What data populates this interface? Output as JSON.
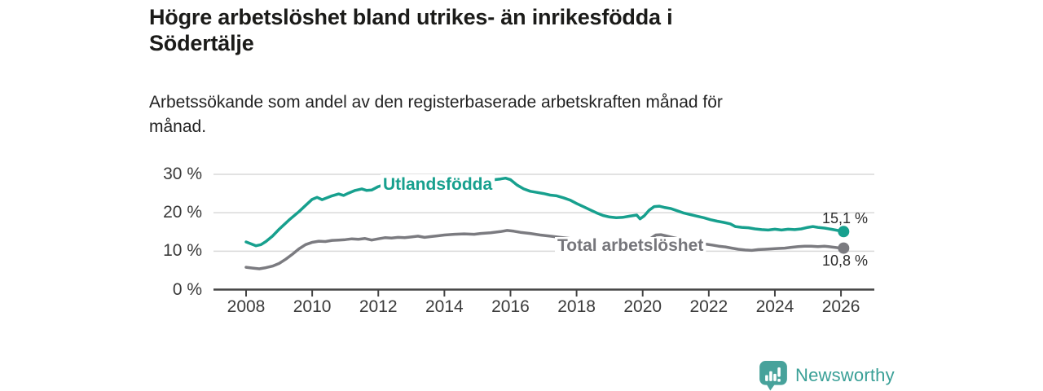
{
  "header": {
    "title_line1": "Högre arbetslöshet bland utrikes- än inrikesfödda i",
    "title_line2": "Södertälje",
    "subtitle_line1": "Arbetssökande som andel av den registerbaserade arbetskraften månad för",
    "subtitle_line2": "månad."
  },
  "chart_data": {
    "type": "line",
    "title": "Högre arbetslöshet bland utrikes- än inrikesfödda i Södertälje",
    "subtitle": "Arbetssökande som andel av den registerbaserade arbetskraften månad för månad.",
    "x_axis": {
      "range": [
        2007.7,
        2027.1
      ],
      "ticks": [
        {
          "value": 2008,
          "label": "2008"
        },
        {
          "value": 2010,
          "label": "2010"
        },
        {
          "value": 2012,
          "label": "2012"
        },
        {
          "value": 2014,
          "label": "2014"
        },
        {
          "value": 2016,
          "label": "2016"
        },
        {
          "value": 2018,
          "label": "2018"
        },
        {
          "value": 2020,
          "label": "2020"
        },
        {
          "value": 2022,
          "label": "2022"
        },
        {
          "value": 2024,
          "label": "2024"
        },
        {
          "value": 2026,
          "label": "2026"
        }
      ]
    },
    "y_axis": {
      "range": [
        0,
        30
      ],
      "unit": "%",
      "grid": true,
      "ticks": [
        {
          "value": 0,
          "label": "0 %"
        },
        {
          "value": 10,
          "label": "10 %"
        },
        {
          "value": 20,
          "label": "20 %"
        },
        {
          "value": 30,
          "label": "30 %"
        }
      ]
    },
    "legend_position": "inline-labels",
    "series": [
      {
        "name": "Utlandsfödda",
        "color": "#17a08e",
        "end_label": "15,1 %",
        "end_value": 15.1,
        "points": [
          [
            2008.0,
            12.4
          ],
          [
            2008.15,
            11.9
          ],
          [
            2008.3,
            11.4
          ],
          [
            2008.45,
            11.7
          ],
          [
            2008.6,
            12.5
          ],
          [
            2008.8,
            13.9
          ],
          [
            2009.0,
            15.7
          ],
          [
            2009.15,
            16.9
          ],
          [
            2009.3,
            18.1
          ],
          [
            2009.45,
            19.2
          ],
          [
            2009.6,
            20.3
          ],
          [
            2009.8,
            21.9
          ],
          [
            2010.0,
            23.5
          ],
          [
            2010.15,
            24.0
          ],
          [
            2010.3,
            23.4
          ],
          [
            2010.45,
            23.9
          ],
          [
            2010.6,
            24.4
          ],
          [
            2010.8,
            24.9
          ],
          [
            2010.95,
            24.5
          ],
          [
            2011.1,
            25.1
          ],
          [
            2011.3,
            25.8
          ],
          [
            2011.5,
            26.2
          ],
          [
            2011.65,
            25.8
          ],
          [
            2011.8,
            25.9
          ],
          [
            2012.0,
            26.8
          ],
          [
            2012.2,
            27.4
          ],
          [
            2012.35,
            27.1
          ],
          [
            2012.5,
            27.0
          ],
          [
            2012.7,
            27.2
          ],
          [
            2012.9,
            27.3
          ],
          [
            2013.1,
            27.5
          ],
          [
            2013.4,
            27.4
          ],
          [
            2013.7,
            27.7
          ],
          [
            2014.0,
            27.9
          ],
          [
            2014.3,
            28.0
          ],
          [
            2014.6,
            28.2
          ],
          [
            2014.9,
            28.3
          ],
          [
            2015.2,
            28.4
          ],
          [
            2015.5,
            28.6
          ],
          [
            2015.7,
            28.8
          ],
          [
            2015.85,
            29.0
          ],
          [
            2016.0,
            28.6
          ],
          [
            2016.2,
            27.2
          ],
          [
            2016.4,
            26.2
          ],
          [
            2016.6,
            25.6
          ],
          [
            2016.8,
            25.3
          ],
          [
            2017.0,
            25.0
          ],
          [
            2017.2,
            24.6
          ],
          [
            2017.4,
            24.4
          ],
          [
            2017.6,
            23.9
          ],
          [
            2017.8,
            23.3
          ],
          [
            2018.0,
            22.4
          ],
          [
            2018.2,
            21.6
          ],
          [
            2018.4,
            20.8
          ],
          [
            2018.6,
            20.0
          ],
          [
            2018.8,
            19.3
          ],
          [
            2019.0,
            18.9
          ],
          [
            2019.2,
            18.7
          ],
          [
            2019.4,
            18.8
          ],
          [
            2019.6,
            19.1
          ],
          [
            2019.82,
            19.4
          ],
          [
            2019.92,
            18.4
          ],
          [
            2020.05,
            19.2
          ],
          [
            2020.2,
            20.7
          ],
          [
            2020.35,
            21.6
          ],
          [
            2020.5,
            21.7
          ],
          [
            2020.65,
            21.4
          ],
          [
            2020.85,
            21.1
          ],
          [
            2021.05,
            20.5
          ],
          [
            2021.25,
            19.9
          ],
          [
            2021.45,
            19.5
          ],
          [
            2021.65,
            19.1
          ],
          [
            2021.85,
            18.7
          ],
          [
            2022.05,
            18.2
          ],
          [
            2022.25,
            17.8
          ],
          [
            2022.45,
            17.5
          ],
          [
            2022.65,
            17.1
          ],
          [
            2022.8,
            16.4
          ],
          [
            2023.0,
            16.2
          ],
          [
            2023.2,
            16.1
          ],
          [
            2023.4,
            15.8
          ],
          [
            2023.6,
            15.6
          ],
          [
            2023.8,
            15.5
          ],
          [
            2024.0,
            15.7
          ],
          [
            2024.2,
            15.5
          ],
          [
            2024.4,
            15.7
          ],
          [
            2024.6,
            15.6
          ],
          [
            2024.8,
            15.8
          ],
          [
            2025.0,
            16.2
          ],
          [
            2025.15,
            16.4
          ],
          [
            2025.3,
            16.2
          ],
          [
            2025.5,
            16.0
          ],
          [
            2025.7,
            15.7
          ],
          [
            2025.9,
            15.4
          ],
          [
            2026.08,
            15.1
          ]
        ]
      },
      {
        "name": "Total arbetslöshet",
        "color": "#7b7b80",
        "end_label": "10,8 %",
        "end_value": 10.8,
        "points": [
          [
            2008.0,
            5.8
          ],
          [
            2008.2,
            5.6
          ],
          [
            2008.4,
            5.4
          ],
          [
            2008.6,
            5.7
          ],
          [
            2008.8,
            6.1
          ],
          [
            2009.0,
            6.8
          ],
          [
            2009.2,
            7.9
          ],
          [
            2009.4,
            9.2
          ],
          [
            2009.6,
            10.6
          ],
          [
            2009.8,
            11.7
          ],
          [
            2010.0,
            12.3
          ],
          [
            2010.2,
            12.6
          ],
          [
            2010.4,
            12.5
          ],
          [
            2010.6,
            12.8
          ],
          [
            2010.8,
            12.9
          ],
          [
            2011.0,
            13.0
          ],
          [
            2011.2,
            13.2
          ],
          [
            2011.4,
            13.1
          ],
          [
            2011.6,
            13.3
          ],
          [
            2011.8,
            12.9
          ],
          [
            2012.0,
            13.2
          ],
          [
            2012.2,
            13.5
          ],
          [
            2012.4,
            13.4
          ],
          [
            2012.6,
            13.6
          ],
          [
            2012.8,
            13.5
          ],
          [
            2013.0,
            13.7
          ],
          [
            2013.2,
            13.9
          ],
          [
            2013.4,
            13.6
          ],
          [
            2013.6,
            13.8
          ],
          [
            2013.8,
            14.0
          ],
          [
            2014.0,
            14.2
          ],
          [
            2014.3,
            14.4
          ],
          [
            2014.6,
            14.5
          ],
          [
            2014.9,
            14.4
          ],
          [
            2015.1,
            14.6
          ],
          [
            2015.4,
            14.8
          ],
          [
            2015.7,
            15.1
          ],
          [
            2015.9,
            15.4
          ],
          [
            2016.1,
            15.2
          ],
          [
            2016.3,
            14.9
          ],
          [
            2016.6,
            14.6
          ],
          [
            2016.9,
            14.2
          ],
          [
            2017.2,
            13.9
          ],
          [
            2017.5,
            13.6
          ],
          [
            2017.8,
            13.3
          ],
          [
            2018.1,
            13.0
          ],
          [
            2018.4,
            12.7
          ],
          [
            2018.7,
            12.4
          ],
          [
            2019.0,
            12.1
          ],
          [
            2019.3,
            12.0
          ],
          [
            2019.6,
            11.9
          ],
          [
            2019.9,
            11.8
          ],
          [
            2020.1,
            12.3
          ],
          [
            2020.25,
            13.4
          ],
          [
            2020.4,
            14.2
          ],
          [
            2020.55,
            14.3
          ],
          [
            2020.7,
            14.0
          ],
          [
            2020.9,
            13.6
          ],
          [
            2021.1,
            13.2
          ],
          [
            2021.35,
            12.7
          ],
          [
            2021.6,
            12.3
          ],
          [
            2021.85,
            11.9
          ],
          [
            2022.1,
            11.6
          ],
          [
            2022.3,
            11.3
          ],
          [
            2022.5,
            11.1
          ],
          [
            2022.7,
            10.8
          ],
          [
            2022.9,
            10.5
          ],
          [
            2023.1,
            10.3
          ],
          [
            2023.3,
            10.2
          ],
          [
            2023.5,
            10.4
          ],
          [
            2023.7,
            10.5
          ],
          [
            2023.9,
            10.6
          ],
          [
            2024.1,
            10.7
          ],
          [
            2024.3,
            10.8
          ],
          [
            2024.5,
            11.0
          ],
          [
            2024.7,
            11.2
          ],
          [
            2024.9,
            11.3
          ],
          [
            2025.1,
            11.3
          ],
          [
            2025.3,
            11.2
          ],
          [
            2025.5,
            11.3
          ],
          [
            2025.7,
            11.1
          ],
          [
            2025.9,
            10.9
          ],
          [
            2026.08,
            10.8
          ]
        ]
      }
    ]
  },
  "colors": {
    "gridline": "#d9d9d9",
    "axis": "#454545",
    "axis_text": "#3a3a3a",
    "title_text": "#1b1b19",
    "end_label_text": "#2b2b2b"
  },
  "branding": {
    "logo_text": "Newsworthy",
    "logo_color": "#43a096"
  }
}
